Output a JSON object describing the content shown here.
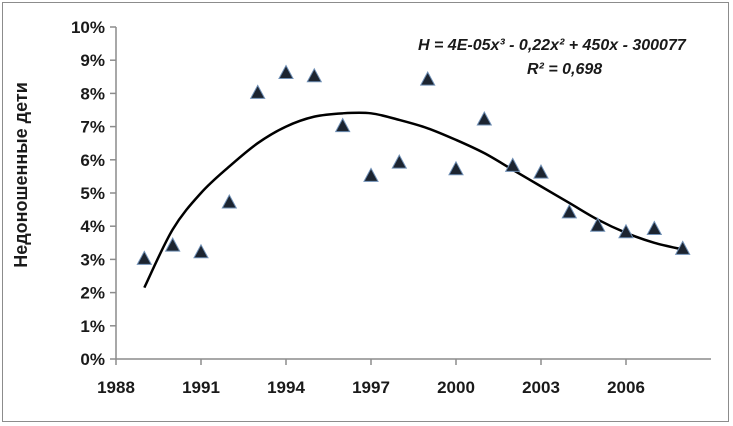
{
  "chart_data": {
    "type": "scatter",
    "xlabel": "",
    "ylabel": "Недоношенные дети",
    "xlim": [
      1988,
      2009
    ],
    "ylim": [
      0,
      10
    ],
    "x_ticks": [
      "1988",
      "1991",
      "1994",
      "1997",
      "2000",
      "2003",
      "2006"
    ],
    "y_ticks": [
      "0%",
      "1%",
      "2%",
      "3%",
      "4%",
      "5%",
      "6%",
      "7%",
      "8%",
      "9%",
      "10%"
    ],
    "grid": false,
    "marker": "triangle",
    "marker_color": "#1c2430",
    "trendline_color": "#000000",
    "series": [
      {
        "x": [
          1989,
          1990,
          1991,
          1992,
          1993,
          1994,
          1995,
          1996,
          1997,
          1998,
          1999,
          2000,
          2001,
          2002,
          2003,
          2004,
          2005,
          2006,
          2007,
          2008
        ],
        "values": [
          3.0,
          3.4,
          3.2,
          4.7,
          8.0,
          8.6,
          8.5,
          7.0,
          5.5,
          5.9,
          8.4,
          5.7,
          7.2,
          5.8,
          5.6,
          4.4,
          4.0,
          3.8,
          3.9,
          3.3
        ]
      }
    ],
    "trendline": {
      "type": "polynomial",
      "x": [
        1989,
        1990,
        1991,
        1992,
        1993,
        1994,
        1995,
        1996,
        1997,
        1998,
        1999,
        2000,
        2001,
        2002,
        2003,
        2004,
        2005,
        2006,
        2007,
        2008
      ],
      "values": [
        2.15,
        3.9,
        5.0,
        5.8,
        6.5,
        7.0,
        7.3,
        7.4,
        7.4,
        7.2,
        6.95,
        6.6,
        6.2,
        5.7,
        5.2,
        4.7,
        4.2,
        3.8,
        3.5,
        3.3
      ]
    },
    "annotations": {
      "equation": "H = 4E-05x³ - 0,22x² + 450x - 300077",
      "r_squared": "R² = 0,698"
    }
  }
}
